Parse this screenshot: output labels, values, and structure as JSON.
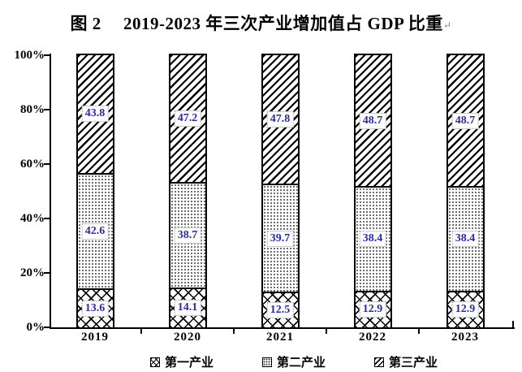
{
  "title": {
    "text": "图 2　 2019-2023 年三次产业增加值占 GDP 比重",
    "return_mark": "↵"
  },
  "chart_data": {
    "type": "bar",
    "stacked": true,
    "title": "图 2　 2019-2023 年三次产业增加值占 GDP 比重",
    "categories": [
      "2019",
      "2020",
      "2021",
      "2022",
      "2023"
    ],
    "series": [
      {
        "name": "第一产业",
        "pattern": "crosshatch",
        "values": [
          13.6,
          14.1,
          12.5,
          12.9,
          12.9
        ]
      },
      {
        "name": "第二产业",
        "pattern": "dots",
        "values": [
          42.6,
          38.7,
          39.7,
          38.4,
          38.4
        ]
      },
      {
        "name": "第三产业",
        "pattern": "diagonal",
        "values": [
          43.8,
          47.2,
          47.8,
          48.7,
          48.7
        ]
      }
    ],
    "xlabel": "",
    "ylabel": "",
    "ylim": [
      0,
      100
    ],
    "ytick_step": 20,
    "ytick_labels": [
      "0%",
      "20%",
      "40%",
      "60%",
      "80%",
      "100%"
    ],
    "grid": false,
    "legend_position": "bottom",
    "bar_outline_color": "#000000",
    "value_label_color": "#2a2ab0",
    "value_label_bg": "#ffffff"
  }
}
